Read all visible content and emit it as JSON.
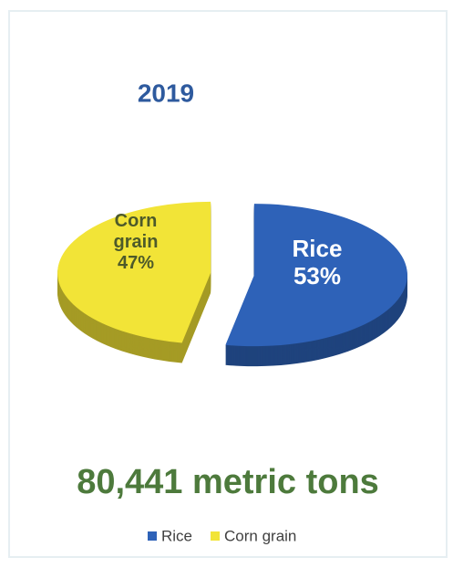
{
  "chart_data": {
    "type": "pie",
    "title": "2019",
    "categories": [
      "Rice",
      "Corn grain"
    ],
    "values": [
      53,
      47
    ],
    "value_labels": [
      "53%",
      "47%"
    ],
    "colors": [
      "#2e62b8",
      "#f2e437"
    ],
    "annotation": "80,441 metric tons",
    "legend": "bottom"
  }
}
